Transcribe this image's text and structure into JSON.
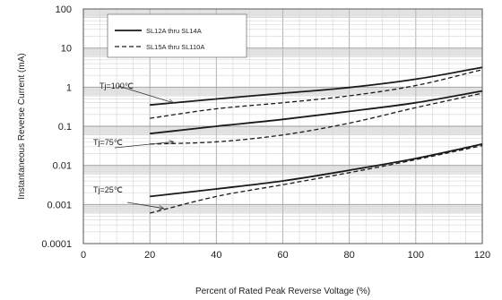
{
  "chart_data": {
    "type": "line",
    "xlabel": "Percent of  Rated Peak Reverse Voltage (%)",
    "ylabel": "Instantaneous Reverse Current (mA)",
    "xlim": [
      0,
      120
    ],
    "ylim": [
      0.0001,
      100
    ],
    "yscale": "log",
    "grid": true,
    "x_ticks": [
      "0",
      "20",
      "40",
      "60",
      "80",
      "100",
      "120"
    ],
    "y_ticks": [
      "100",
      "10",
      "1",
      "0.1",
      "0.01",
      "0.001",
      "0.0001"
    ],
    "legend": {
      "position": "top-center",
      "entries": [
        {
          "label": "SL12A thru SL14A",
          "style": "solid",
          "color": "#1a1a1a"
        },
        {
          "label": "SL15A thru SL110A",
          "style": "dashed",
          "color": "#1a1a1a"
        }
      ]
    },
    "series": [
      {
        "name": "SL12A thru SL14A",
        "condition": "Tj=100℃",
        "style": "solid",
        "x": [
          20,
          40,
          60,
          80,
          100,
          120
        ],
        "y": [
          0.35,
          0.5,
          0.7,
          0.98,
          1.6,
          3.2
        ]
      },
      {
        "name": "SL15A thru SL110A",
        "condition": "Tj=100℃",
        "style": "dashed",
        "x": [
          20,
          40,
          60,
          80,
          100,
          120
        ],
        "y": [
          0.16,
          0.28,
          0.4,
          0.6,
          1.1,
          2.8
        ]
      },
      {
        "name": "SL12A thru SL14A",
        "condition": "Tj=75℃",
        "style": "solid",
        "x": [
          20,
          40,
          60,
          80,
          100,
          120
        ],
        "y": [
          0.065,
          0.1,
          0.15,
          0.24,
          0.4,
          0.8
        ]
      },
      {
        "name": "SL15A thru SL110A",
        "condition": "Tj=75℃",
        "style": "dashed",
        "x": [
          20,
          40,
          60,
          80,
          100,
          120
        ],
        "y": [
          0.035,
          0.04,
          0.06,
          0.12,
          0.3,
          0.7
        ]
      },
      {
        "name": "SL12A thru SL14A",
        "condition": "Tj=25℃",
        "style": "solid",
        "x": [
          20,
          40,
          60,
          80,
          100,
          120
        ],
        "y": [
          0.0016,
          0.0025,
          0.004,
          0.0075,
          0.015,
          0.035
        ]
      },
      {
        "name": "SL15A thru SL110A",
        "condition": "Tj=25℃",
        "style": "dashed",
        "x": [
          20,
          40,
          60,
          80,
          100,
          120
        ],
        "y": [
          0.0006,
          0.0016,
          0.0032,
          0.0065,
          0.014,
          0.032
        ]
      }
    ],
    "annotations": [
      {
        "text": "Tj=100℃",
        "points_to": {
          "x": 27,
          "y": 0.4
        }
      },
      {
        "text": "Tj=75℃",
        "points_to": {
          "x": 27,
          "y": 0.04
        }
      },
      {
        "text": "Tj=25℃",
        "points_to": {
          "x": 24,
          "y": 0.0008
        }
      }
    ]
  }
}
